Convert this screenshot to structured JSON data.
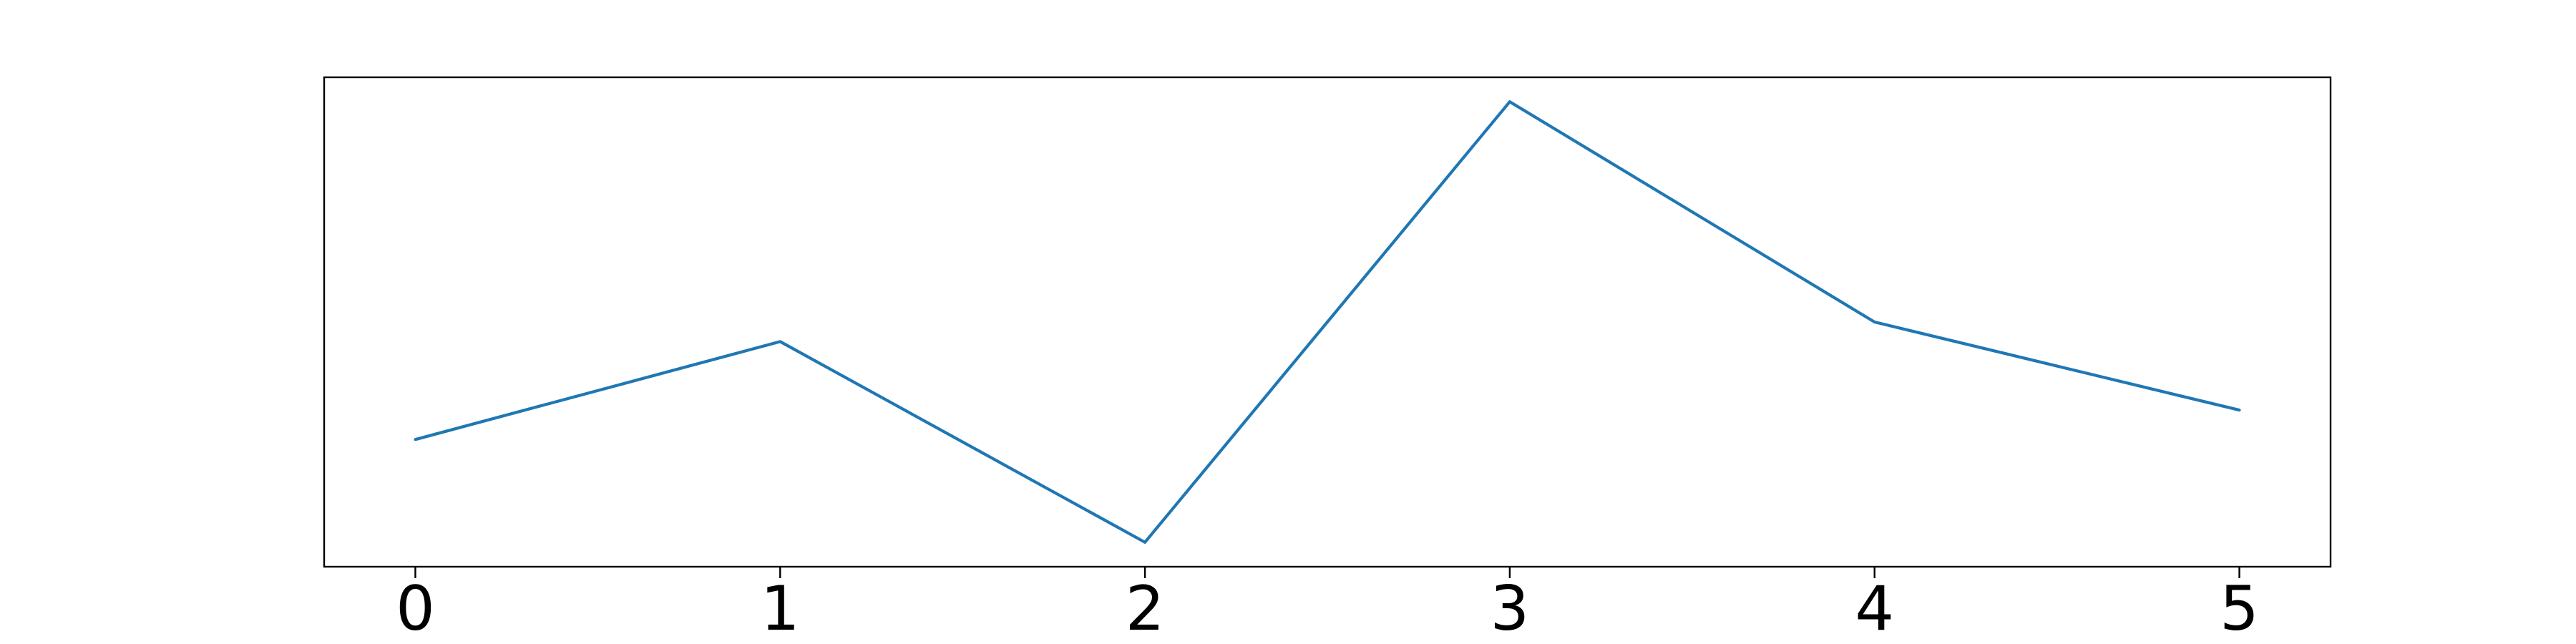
{
  "chart_data": {
    "type": "line",
    "title": "",
    "xlabel": "",
    "ylabel": "",
    "x": [
      0,
      1,
      2,
      3,
      4,
      5
    ],
    "xticks": [
      "0",
      "1",
      "2",
      "3",
      "4",
      "5"
    ],
    "xlim": [
      -0.25,
      5.25
    ],
    "ylim": [
      0.0,
      1.0
    ],
    "yticks": [],
    "grid": false,
    "series": [
      {
        "values": [
          0.26,
          0.46,
          0.05,
          0.95,
          0.5,
          0.32
        ],
        "color": "#1f77b4"
      }
    ]
  }
}
